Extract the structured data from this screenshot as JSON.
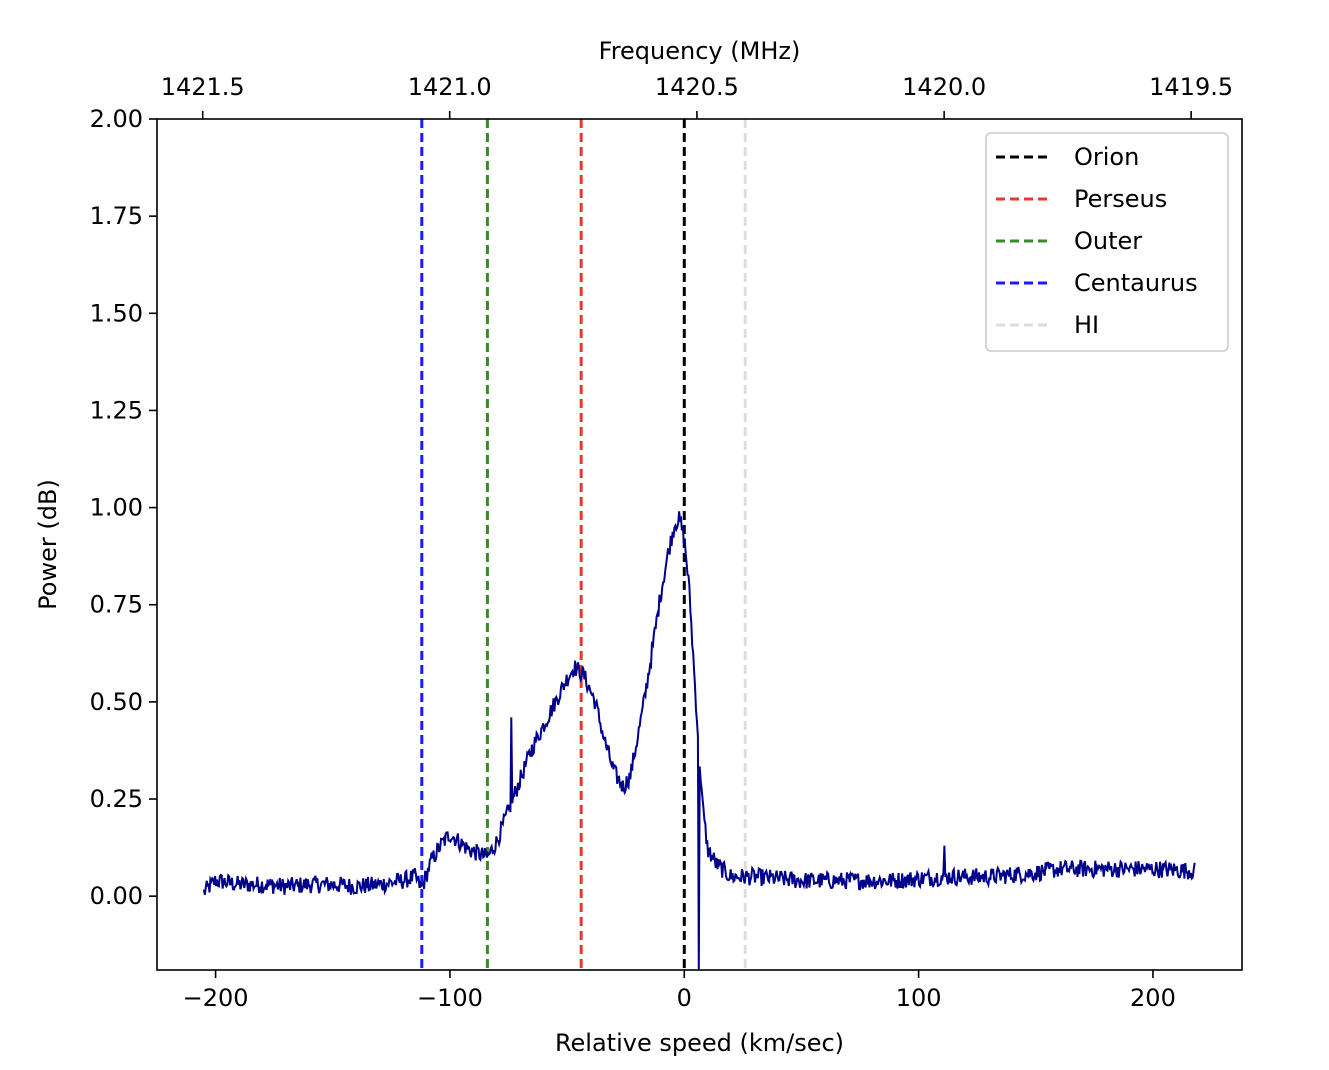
{
  "chart_data": {
    "type": "line",
    "xlabel": "Relative speed (km/sec)",
    "ylabel": "Power (dB)",
    "top_xlabel": "Frequency (MHz)",
    "xlim": [
      -225,
      238
    ],
    "ylim": [
      -0.19,
      2.0
    ],
    "x_ticks": [
      -200,
      -100,
      0,
      100,
      200
    ],
    "x_tick_labels": [
      "−200",
      "−100",
      "0",
      "100",
      "200"
    ],
    "y_ticks": [
      0.0,
      0.25,
      0.5,
      0.75,
      1.0,
      1.25,
      1.5,
      1.75,
      2.0
    ],
    "y_tick_labels": [
      "0.00",
      "0.25",
      "0.50",
      "0.75",
      "1.00",
      "1.25",
      "1.50",
      "1.75",
      "2.00"
    ],
    "top_ticks_speed": [
      -205.5,
      -100.1,
      5.4,
      110.9,
      216.3
    ],
    "top_tick_labels": [
      "1421.5",
      "1421.0",
      "1420.5",
      "1420.0",
      "1419.5"
    ],
    "grid": false,
    "legend_position": "upper-right",
    "spectrum": {
      "color": "#00008b",
      "x_range": [
        -205,
        218
      ],
      "points": [
        [
          -205,
          0.01
        ],
        [
          -200,
          0.04
        ],
        [
          -190,
          0.03
        ],
        [
          -180,
          0.03
        ],
        [
          -170,
          0.025
        ],
        [
          -160,
          0.03
        ],
        [
          -150,
          0.03
        ],
        [
          -140,
          0.025
        ],
        [
          -130,
          0.03
        ],
        [
          -120,
          0.04
        ],
        [
          -115,
          0.05
        ],
        [
          -112,
          0.02
        ],
        [
          -108,
          0.09
        ],
        [
          -104,
          0.13
        ],
        [
          -100,
          0.16
        ],
        [
          -96,
          0.14
        ],
        [
          -92,
          0.12
        ],
        [
          -88,
          0.11
        ],
        [
          -84,
          0.1
        ],
        [
          -80,
          0.14
        ],
        [
          -75,
          0.22
        ],
        [
          -70,
          0.3
        ],
        [
          -65,
          0.38
        ],
        [
          -60,
          0.44
        ],
        [
          -55,
          0.5
        ],
        [
          -50,
          0.56
        ],
        [
          -47,
          0.59
        ],
        [
          -43,
          0.57
        ],
        [
          -38,
          0.5
        ],
        [
          -34,
          0.4
        ],
        [
          -30,
          0.32
        ],
        [
          -26,
          0.28
        ],
        [
          -23,
          0.31
        ],
        [
          -18,
          0.47
        ],
        [
          -14,
          0.62
        ],
        [
          -10,
          0.78
        ],
        [
          -7,
          0.88
        ],
        [
          -4,
          0.96
        ],
        [
          -2,
          0.97
        ],
        [
          0,
          0.92
        ],
        [
          2,
          0.8
        ],
        [
          4,
          0.6
        ],
        [
          6,
          0.4
        ],
        [
          8,
          0.22
        ],
        [
          10,
          0.12
        ],
        [
          14,
          0.08
        ],
        [
          20,
          0.05
        ],
        [
          30,
          0.05
        ],
        [
          50,
          0.04
        ],
        [
          70,
          0.04
        ],
        [
          90,
          0.04
        ],
        [
          110,
          0.05
        ],
        [
          130,
          0.05
        ],
        [
          150,
          0.06
        ],
        [
          160,
          0.07
        ],
        [
          180,
          0.07
        ],
        [
          200,
          0.07
        ],
        [
          218,
          0.065
        ]
      ],
      "spikes": [
        {
          "x": -73.5,
          "y": 0.46
        },
        {
          "x": 6.2,
          "y": -0.19
        },
        {
          "x": 111,
          "y": 0.13
        }
      ]
    },
    "series": [
      {
        "name": "Orion",
        "x": 0,
        "color": "#000000"
      },
      {
        "name": "Perseus",
        "x": -44,
        "color": "#e8392b"
      },
      {
        "name": "Outer",
        "x": -84,
        "color": "#3b8a2a"
      },
      {
        "name": "Centaurus",
        "x": -112,
        "color": "#1a1aff"
      },
      {
        "name": "HI",
        "x": 26,
        "color": "#dddddd"
      }
    ]
  }
}
